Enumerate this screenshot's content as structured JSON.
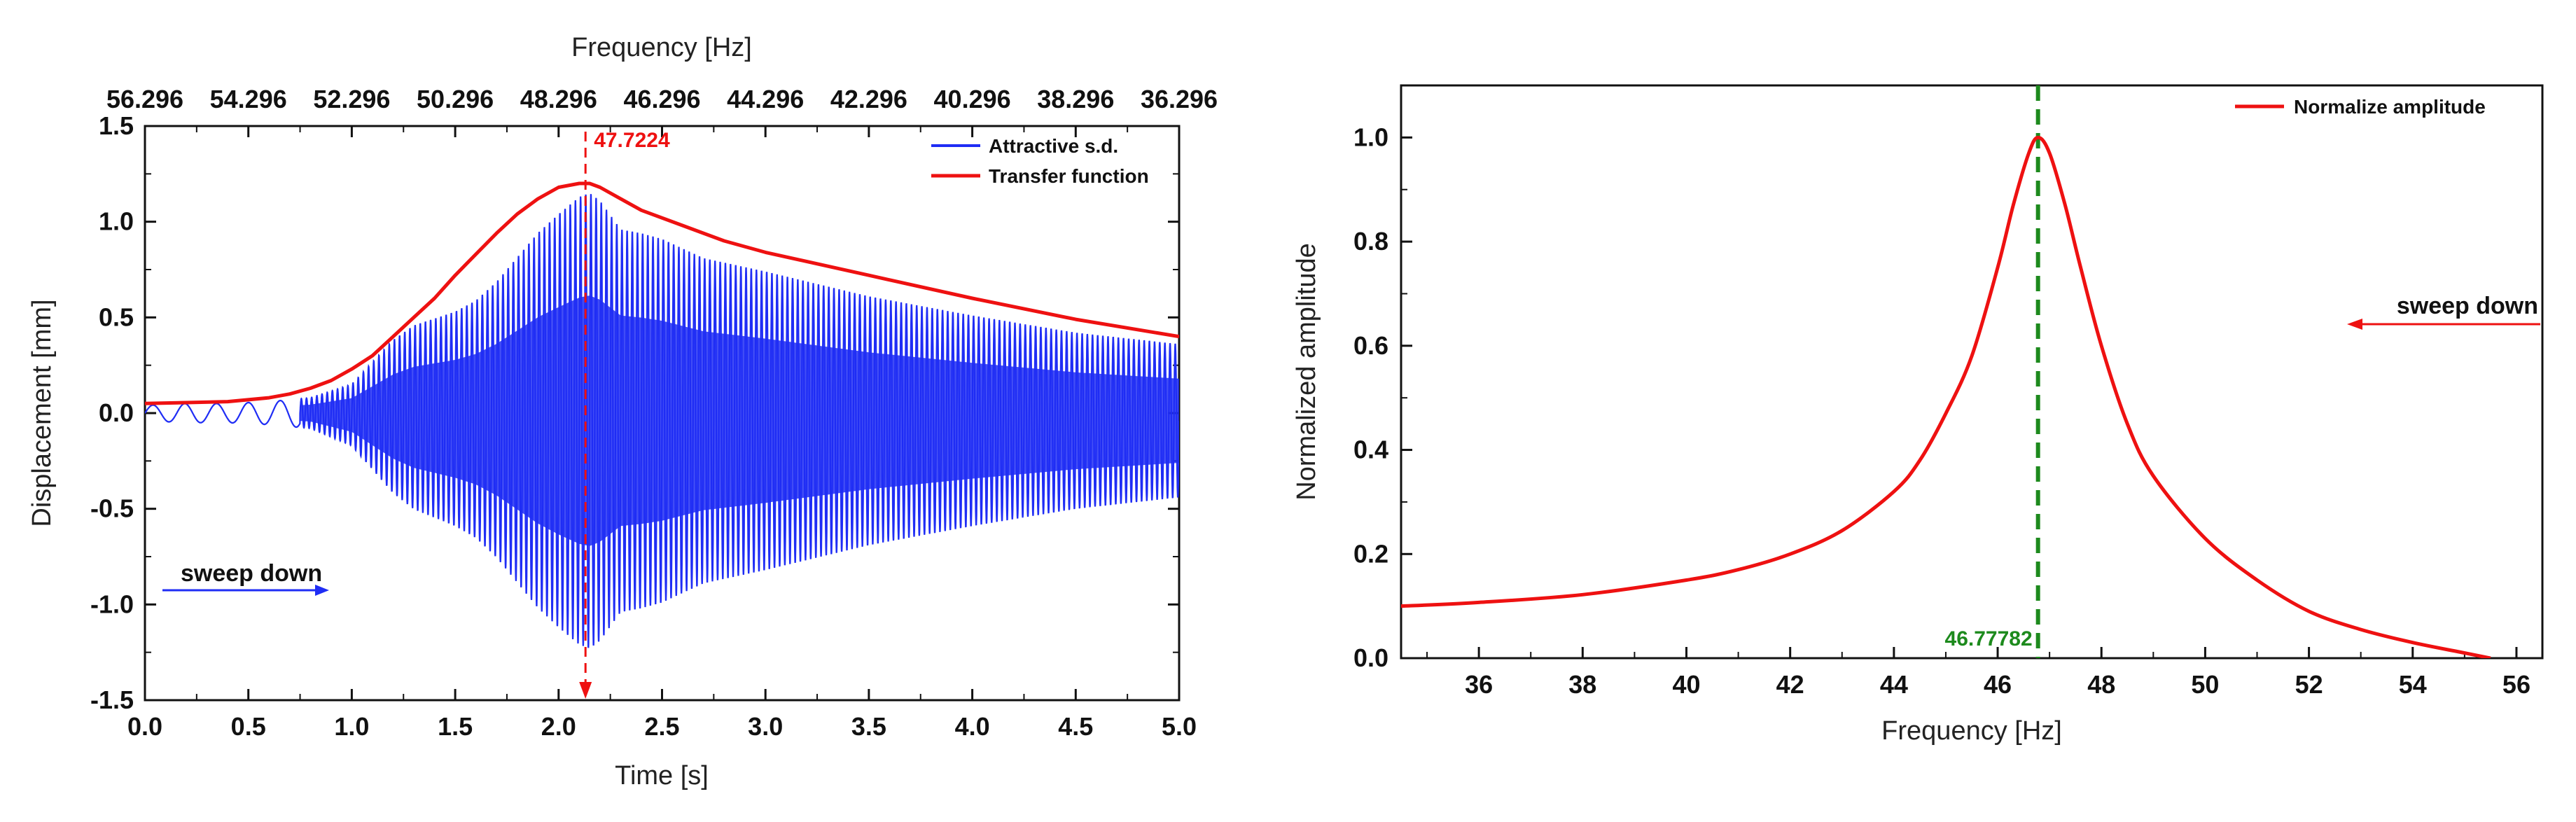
{
  "colors": {
    "signal": "#1f2df5",
    "envelope": "#ee1111",
    "peak_line_left": "#ee1111",
    "normalized": "#ee1111",
    "peak_line_right": "#1d8a1d",
    "axis": "#111111"
  },
  "chart_data": [
    {
      "type": "line",
      "title": "",
      "xlabel": "Time [s]",
      "ylabel": "Displacement [mm]",
      "top_xlabel": "Frequency [Hz]",
      "xlim": [
        0,
        5
      ],
      "ylim": [
        -1.5,
        1.5
      ],
      "x_ticks": [
        0.0,
        0.5,
        1.0,
        1.5,
        2.0,
        2.5,
        3.0,
        3.5,
        4.0,
        4.5,
        5.0
      ],
      "x_tick_labels": [
        "0.0",
        "0.5",
        "1.0",
        "1.5",
        "2.0",
        "2.5",
        "3.0",
        "3.5",
        "4.0",
        "4.5",
        "5.0"
      ],
      "y_ticks": [
        -1.5,
        -1.0,
        -0.5,
        0.0,
        0.5,
        1.0,
        1.5
      ],
      "y_tick_labels": [
        "-1.5",
        "-1.0",
        "-0.5",
        "0.0",
        "0.5",
        "1.0",
        "1.5"
      ],
      "top_x_tick_labels": [
        "56.296",
        "54.296",
        "52.296",
        "50.296",
        "48.296",
        "46.296",
        "44.296",
        "42.296",
        "40.296",
        "38.296",
        "36.296"
      ],
      "legend": [
        {
          "label": "Attractive s.d.",
          "series": "signal"
        },
        {
          "label": "Transfer function",
          "series": "envelope"
        }
      ],
      "legend_position": "top-right",
      "peak_marker": {
        "x": 2.13,
        "label": "47.7224"
      },
      "annotation": "sweep down",
      "series": [
        {
          "name": "Attractive s.d.",
          "kind": "oscillation",
          "cycles": 200,
          "envelope_t": [
            0.0,
            0.2,
            0.4,
            0.6,
            0.8,
            1.0,
            1.1,
            1.2,
            1.3,
            1.4,
            1.5,
            1.6,
            1.7,
            1.8,
            1.9,
            2.0,
            2.1,
            2.15,
            2.2,
            2.3,
            2.4,
            2.5,
            2.7,
            3.0,
            3.5,
            4.0,
            4.5,
            5.0
          ],
          "envelope_a": [
            0.04,
            0.05,
            0.05,
            0.06,
            0.08,
            0.16,
            0.28,
            0.4,
            0.48,
            0.52,
            0.56,
            0.62,
            0.72,
            0.85,
            0.98,
            1.08,
            1.17,
            1.19,
            1.15,
            1.0,
            0.98,
            0.95,
            0.85,
            0.78,
            0.65,
            0.55,
            0.46,
            0.4
          ],
          "offset_t": [
            0.0,
            0.4,
            0.6,
            0.8,
            1.0,
            1.5,
            2.0,
            3.0,
            4.0,
            5.0
          ],
          "offset_v": [
            0.0,
            0.0,
            0.0,
            0.0,
            -0.01,
            -0.03,
            -0.04,
            -0.04,
            -0.04,
            -0.04
          ]
        },
        {
          "name": "Transfer function",
          "x": [
            0.0,
            0.2,
            0.4,
            0.6,
            0.7,
            0.8,
            0.9,
            1.0,
            1.1,
            1.2,
            1.3,
            1.4,
            1.5,
            1.6,
            1.7,
            1.8,
            1.9,
            2.0,
            2.1,
            2.15,
            2.2,
            2.3,
            2.4,
            2.6,
            2.8,
            3.0,
            3.5,
            4.0,
            4.5,
            5.0
          ],
          "y": [
            0.05,
            0.055,
            0.06,
            0.08,
            0.1,
            0.13,
            0.17,
            0.23,
            0.3,
            0.4,
            0.5,
            0.6,
            0.72,
            0.83,
            0.94,
            1.04,
            1.12,
            1.18,
            1.2,
            1.2,
            1.18,
            1.12,
            1.06,
            0.98,
            0.9,
            0.84,
            0.72,
            0.6,
            0.49,
            0.4
          ]
        }
      ]
    },
    {
      "type": "line",
      "title": "",
      "xlabel": "Frequency [Hz]",
      "ylabel": "Normalized amplitude",
      "xlim": [
        34.5,
        56.5
      ],
      "ylim": [
        0.0,
        1.1
      ],
      "x_ticks": [
        36,
        38,
        40,
        42,
        44,
        46,
        48,
        50,
        52,
        54,
        56
      ],
      "x_tick_labels": [
        "36",
        "38",
        "40",
        "42",
        "44",
        "46",
        "48",
        "50",
        "52",
        "54",
        "56"
      ],
      "y_ticks": [
        0.0,
        0.2,
        0.4,
        0.6,
        0.8,
        1.0
      ],
      "y_tick_labels": [
        "0.0",
        "0.2",
        "0.4",
        "0.6",
        "0.8",
        "1.0"
      ],
      "legend": [
        {
          "label": "Normalize amplitude",
          "series": "normalized"
        }
      ],
      "legend_position": "top-right",
      "peak_marker": {
        "x": 46.77782,
        "label": "46.77782"
      },
      "annotation": "sweep down",
      "series": [
        {
          "name": "Normalize amplitude",
          "x": [
            34.5,
            36,
            38,
            40,
            41,
            42,
            43,
            44,
            44.5,
            45,
            45.5,
            46,
            46.3,
            46.6,
            46.78,
            47,
            47.3,
            47.6,
            48,
            48.5,
            49,
            50,
            51,
            52,
            53,
            54,
            55,
            55.5
          ],
          "y": [
            0.1,
            0.107,
            0.122,
            0.15,
            0.17,
            0.2,
            0.245,
            0.32,
            0.38,
            0.47,
            0.58,
            0.75,
            0.87,
            0.97,
            1.0,
            0.97,
            0.87,
            0.75,
            0.6,
            0.45,
            0.35,
            0.23,
            0.15,
            0.09,
            0.055,
            0.03,
            0.01,
            0.0
          ]
        }
      ]
    }
  ]
}
